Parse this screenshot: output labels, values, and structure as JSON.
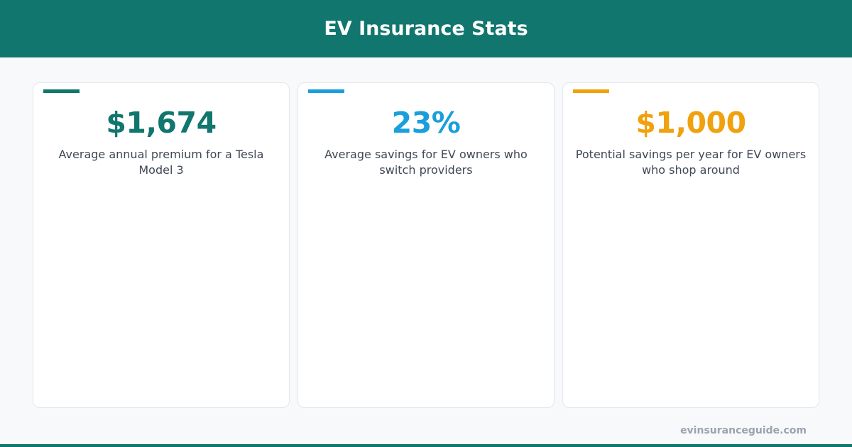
{
  "header": {
    "title": "EV Insurance Stats",
    "color": "#11766e"
  },
  "cards": [
    {
      "value": "$1,674",
      "description": "Average annual premium for a Tesla Model 3",
      "color": "#11766e"
    },
    {
      "value": "23%",
      "description": "Average savings for EV owners who switch providers",
      "color": "#1a9fdb"
    },
    {
      "value": "$1,000",
      "description": "Potential savings per year for EV owners who shop around",
      "color": "#f0a10e"
    }
  ],
  "footer": {
    "source": "evinsuranceguide.com"
  }
}
